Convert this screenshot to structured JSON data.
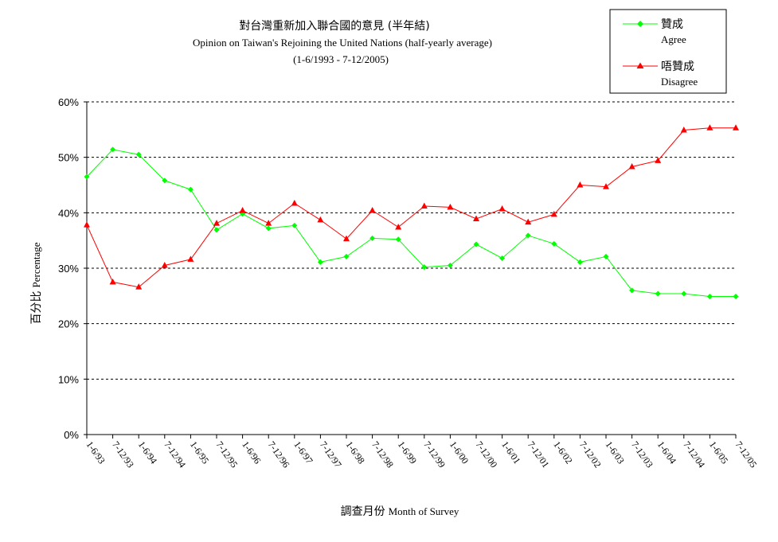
{
  "chart_data": {
    "type": "line",
    "title": "對台灣重新加入聯合國的意見 (半年結)",
    "subtitle": "Opinion on Taiwan's Rejoining the United Nations  (half-yearly average)",
    "subtitle2": "(1-6/1993 - 7-12/2005)",
    "ylabel_zh": "百分比",
    "ylabel_en": "Percentage",
    "xlabel_zh": "調查月份",
    "xlabel_en": "Month of Survey",
    "ylim": [
      0,
      60
    ],
    "yticks": [
      "0%",
      "10%",
      "20%",
      "30%",
      "40%",
      "50%",
      "60%"
    ],
    "grid": true,
    "legend_position": "top-right",
    "categories": [
      "1-6/93",
      "7-12/93",
      "1-6/94",
      "7-12/94",
      "1-6/95",
      "7-12/95",
      "1-6/96",
      "7-12/96",
      "1-6/97",
      "7-12/97",
      "1-6/98",
      "7-12/98",
      "1-6/99",
      "7-12/99",
      "1-6/00",
      "7-12/00",
      "1-6/01",
      "7-12/01",
      "1-6/02",
      "7-12/02",
      "1-6/03",
      "7-12/03",
      "1-6/04",
      "7-12/04",
      "1-6/05",
      "7-12/05"
    ],
    "series": [
      {
        "name_zh": "贊成",
        "name_en": "Agree",
        "color": "#00ff00",
        "marker": "diamond",
        "values": [
          46.5,
          51.4,
          50.5,
          45.8,
          44.2,
          36.9,
          39.8,
          37.2,
          37.7,
          31.1,
          32.1,
          35.4,
          35.2,
          30.2,
          30.5,
          34.3,
          31.8,
          35.9,
          34.4,
          31.1,
          32.1,
          26.0,
          25.4,
          25.4,
          24.9,
          24.9
        ]
      },
      {
        "name_zh": "唔贊成",
        "name_en": "Disagree",
        "color": "#ff0000",
        "marker": "triangle",
        "values": [
          37.8,
          27.5,
          26.6,
          30.5,
          31.6,
          38.1,
          40.4,
          38.1,
          41.7,
          38.7,
          35.3,
          40.4,
          37.4,
          41.2,
          41.0,
          38.9,
          40.7,
          38.3,
          39.7,
          45.0,
          44.7,
          48.3,
          49.4,
          54.9,
          55.3,
          55.3
        ]
      }
    ]
  }
}
